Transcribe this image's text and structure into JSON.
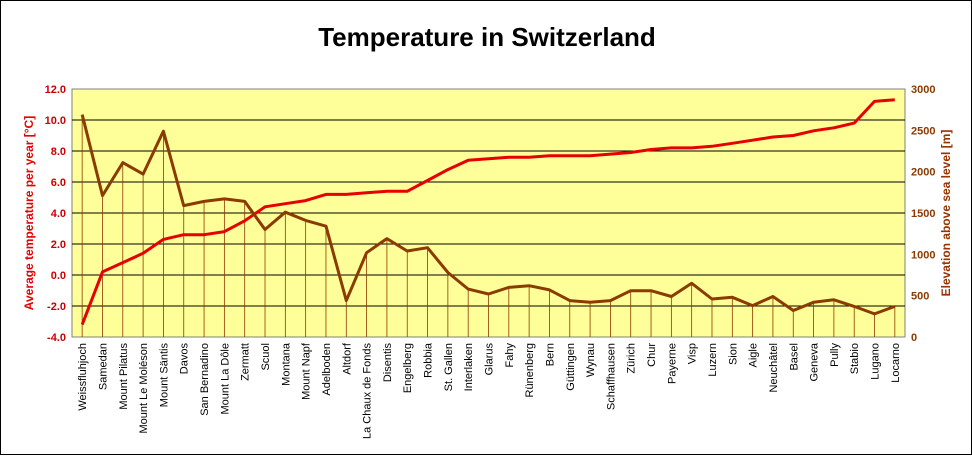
{
  "chart_data": {
    "type": "line",
    "title": "Temperature in Switzerland",
    "xlabel": "",
    "ylabel": "Average temperature per year [°C]",
    "y2label": "Elevation above sea level [m]",
    "ylim": [
      -4,
      12
    ],
    "y2lim": [
      0,
      3000
    ],
    "yticks": [
      "-4.0",
      "-2.0",
      "0.0",
      "2.0",
      "4.0",
      "6.0",
      "8.0",
      "10.0",
      "12.0"
    ],
    "y2ticks": [
      "0",
      "500",
      "1000",
      "1500",
      "2000",
      "2500",
      "3000"
    ],
    "categories": [
      "Weissfluhjoch",
      "Samedan",
      "Mount Pilatus",
      "Mount Le Moléson",
      "Mount Säntis",
      "Davos",
      "San Bernadino",
      "Mount La Dôle",
      "Zermatt",
      "Scuol",
      "Montana",
      "Mount Napf",
      "Adelboden",
      "Altdorf",
      "La Chaux de Fonds",
      "Disentis",
      "Engelberg",
      "Robbia",
      "St. Gallen",
      "Interlaken",
      "Glarus",
      "Fahy",
      "Rünenberg",
      "Bern",
      "Güttingen",
      "Wynau",
      "Schaffhausen",
      "Zürich",
      "Chur",
      "Payerne",
      "Visp",
      "Luzern",
      "Sion",
      "Aigle",
      "Neuchâtel",
      "Basel",
      "Geneva",
      "Pully",
      "Stabio",
      "Lugano",
      "Locarno"
    ],
    "series": [
      {
        "name": "Average temperature per year [°C]",
        "axis": "left",
        "color": "#e60000",
        "values": [
          -3.2,
          0.2,
          0.8,
          1.4,
          2.3,
          2.6,
          2.6,
          2.8,
          3.5,
          4.4,
          4.6,
          4.8,
          5.2,
          5.2,
          5.3,
          5.4,
          5.4,
          6.1,
          6.8,
          7.4,
          7.5,
          7.6,
          7.6,
          7.7,
          7.7,
          7.7,
          7.8,
          7.9,
          8.1,
          8.2,
          8.2,
          8.3,
          8.5,
          8.7,
          8.9,
          9.0,
          9.3,
          9.5,
          9.8,
          11.2,
          11.3
        ]
      },
      {
        "name": "Elevation above sea level [m]",
        "axis": "right",
        "color": "#8b3a00",
        "values": [
          2690,
          1710,
          2110,
          1970,
          2490,
          1590,
          1640,
          1670,
          1640,
          1300,
          1510,
          1410,
          1340,
          440,
          1020,
          1190,
          1040,
          1080,
          780,
          580,
          520,
          600,
          620,
          570,
          440,
          420,
          440,
          560,
          560,
          490,
          650,
          460,
          480,
          380,
          490,
          320,
          420,
          450,
          370,
          280,
          370
        ]
      }
    ],
    "grid": true,
    "legend": "none",
    "colors": {
      "plot_background": "#ffff99",
      "grid": "#000000",
      "temperature": "#e60000",
      "elevation": "#8b3a00"
    }
  }
}
